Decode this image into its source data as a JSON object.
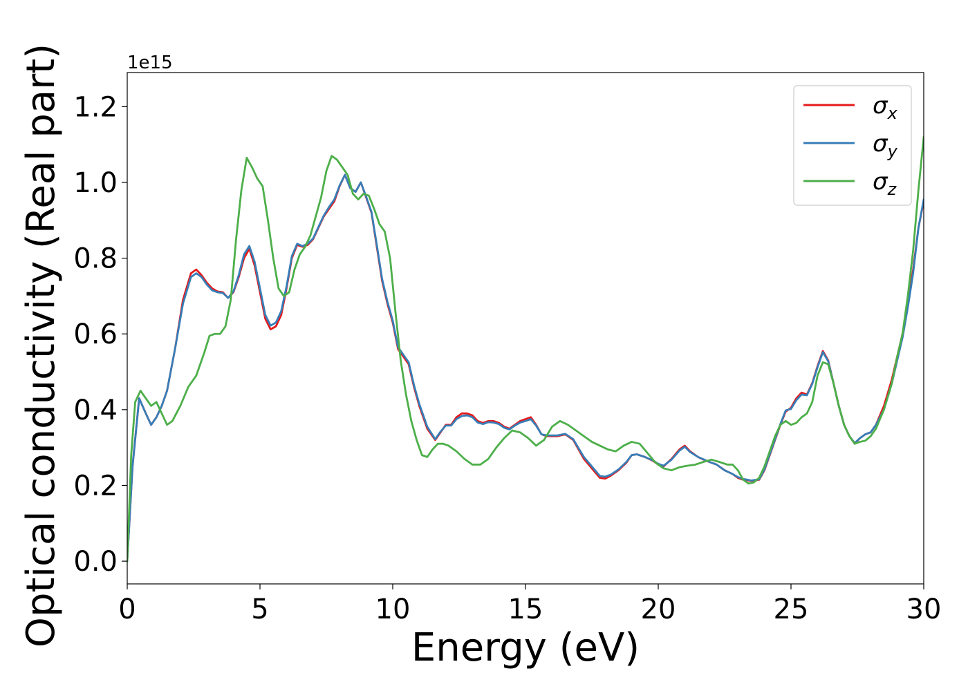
{
  "chart_data": {
    "type": "line",
    "title": "",
    "xlabel": "Energy (eV)",
    "ylabel": "Optical conductivity (Real part)",
    "y_offset_label": "1e15",
    "xlim": [
      0,
      30
    ],
    "ylim": [
      -0.06,
      1.29
    ],
    "xticks": [
      0,
      5,
      10,
      15,
      20,
      25,
      30
    ],
    "xtick_labels": [
      "0",
      "5",
      "10",
      "15",
      "20",
      "25",
      "30"
    ],
    "yticks": [
      0.0,
      0.2,
      0.4,
      0.6,
      0.8,
      1.0,
      1.2
    ],
    "ytick_labels": [
      "0.0",
      "0.2",
      "0.4",
      "0.6",
      "0.8",
      "1.0",
      "1.2"
    ],
    "grid": false,
    "legend_position": "top-right",
    "series": [
      {
        "name": "σx",
        "legend_symbol": "σ",
        "legend_subscript": "x",
        "color": "#e41a1c",
        "x": [
          0,
          0.2,
          0.45,
          0.7,
          0.9,
          1.1,
          1.3,
          1.5,
          1.8,
          2.1,
          2.4,
          2.6,
          2.8,
          3.0,
          3.2,
          3.4,
          3.6,
          3.8,
          4.0,
          4.2,
          4.4,
          4.6,
          4.8,
          5.0,
          5.2,
          5.4,
          5.6,
          5.8,
          6.0,
          6.2,
          6.4,
          6.6,
          6.8,
          7.0,
          7.2,
          7.4,
          7.6,
          7.8,
          8.0,
          8.2,
          8.4,
          8.6,
          8.8,
          9.0,
          9.2,
          9.4,
          9.6,
          9.8,
          10.0,
          10.2,
          10.4,
          10.6,
          10.8,
          11.0,
          11.3,
          11.6,
          11.8,
          12.0,
          12.2,
          12.4,
          12.6,
          12.8,
          13.0,
          13.2,
          13.4,
          13.6,
          13.8,
          14.0,
          14.2,
          14.4,
          14.6,
          14.8,
          15.0,
          15.2,
          15.4,
          15.6,
          15.8,
          16.0,
          16.2,
          16.5,
          16.8,
          17.0,
          17.2,
          17.5,
          17.8,
          18.0,
          18.2,
          18.5,
          18.8,
          19.0,
          19.2,
          19.5,
          19.8,
          20.0,
          20.2,
          20.5,
          20.8,
          21.0,
          21.2,
          21.5,
          21.8,
          22.0,
          22.2,
          22.5,
          22.8,
          23.0,
          23.2,
          23.5,
          23.8,
          24.0,
          24.2,
          24.4,
          24.6,
          24.8,
          25.0,
          25.2,
          25.4,
          25.6,
          25.8,
          26.0,
          26.2,
          26.4,
          26.6,
          26.8,
          27.0,
          27.2,
          27.4,
          27.6,
          27.8,
          28.0,
          28.2,
          28.5,
          28.8,
          29.0,
          29.2,
          29.4,
          29.6,
          29.8,
          30.0
        ],
        "y": [
          0.0,
          0.25,
          0.43,
          0.39,
          0.36,
          0.38,
          0.41,
          0.45,
          0.56,
          0.69,
          0.76,
          0.77,
          0.755,
          0.735,
          0.72,
          0.712,
          0.71,
          0.695,
          0.71,
          0.75,
          0.8,
          0.825,
          0.78,
          0.71,
          0.64,
          0.612,
          0.62,
          0.65,
          0.72,
          0.8,
          0.835,
          0.83,
          0.835,
          0.85,
          0.88,
          0.91,
          0.93,
          0.95,
          0.99,
          1.02,
          0.985,
          0.975,
          1.0,
          0.96,
          0.92,
          0.83,
          0.74,
          0.68,
          0.63,
          0.56,
          0.54,
          0.52,
          0.46,
          0.41,
          0.35,
          0.32,
          0.34,
          0.36,
          0.36,
          0.38,
          0.39,
          0.39,
          0.385,
          0.37,
          0.365,
          0.37,
          0.37,
          0.365,
          0.355,
          0.35,
          0.36,
          0.37,
          0.375,
          0.38,
          0.36,
          0.335,
          0.33,
          0.33,
          0.33,
          0.335,
          0.32,
          0.295,
          0.27,
          0.245,
          0.22,
          0.218,
          0.225,
          0.24,
          0.26,
          0.28,
          0.282,
          0.275,
          0.265,
          0.255,
          0.25,
          0.27,
          0.295,
          0.305,
          0.29,
          0.275,
          0.265,
          0.26,
          0.255,
          0.24,
          0.23,
          0.22,
          0.215,
          0.212,
          0.215,
          0.24,
          0.28,
          0.32,
          0.36,
          0.395,
          0.405,
          0.43,
          0.445,
          0.44,
          0.47,
          0.515,
          0.555,
          0.53,
          0.47,
          0.41,
          0.36,
          0.33,
          0.31,
          0.325,
          0.335,
          0.34,
          0.36,
          0.41,
          0.48,
          0.54,
          0.6,
          0.68,
          0.77,
          0.88,
          0.95
        ]
      },
      {
        "name": "σy",
        "legend_symbol": "σ",
        "legend_subscript": "y",
        "color": "#377eb8",
        "x": [
          0,
          0.2,
          0.45,
          0.7,
          0.9,
          1.1,
          1.3,
          1.5,
          1.8,
          2.1,
          2.4,
          2.6,
          2.8,
          3.0,
          3.2,
          3.4,
          3.6,
          3.8,
          4.0,
          4.2,
          4.4,
          4.6,
          4.8,
          5.0,
          5.2,
          5.4,
          5.6,
          5.8,
          6.0,
          6.2,
          6.4,
          6.6,
          6.8,
          7.0,
          7.2,
          7.4,
          7.6,
          7.8,
          8.0,
          8.2,
          8.4,
          8.6,
          8.8,
          9.0,
          9.2,
          9.4,
          9.6,
          9.8,
          10.0,
          10.2,
          10.4,
          10.6,
          10.8,
          11.0,
          11.3,
          11.6,
          11.8,
          12.0,
          12.2,
          12.4,
          12.6,
          12.8,
          13.0,
          13.2,
          13.4,
          13.6,
          13.8,
          14.0,
          14.2,
          14.4,
          14.6,
          14.8,
          15.0,
          15.2,
          15.4,
          15.6,
          15.8,
          16.0,
          16.2,
          16.5,
          16.8,
          17.0,
          17.2,
          17.5,
          17.8,
          18.0,
          18.2,
          18.5,
          18.8,
          19.0,
          19.2,
          19.5,
          19.8,
          20.0,
          20.2,
          20.5,
          20.8,
          21.0,
          21.2,
          21.5,
          21.8,
          22.0,
          22.2,
          22.5,
          22.8,
          23.0,
          23.2,
          23.5,
          23.8,
          24.0,
          24.2,
          24.4,
          24.6,
          24.8,
          25.0,
          25.2,
          25.4,
          25.6,
          25.8,
          26.0,
          26.2,
          26.4,
          26.6,
          26.8,
          27.0,
          27.2,
          27.4,
          27.6,
          27.8,
          28.0,
          28.2,
          28.5,
          28.8,
          29.0,
          29.2,
          29.4,
          29.6,
          29.8,
          30.0
        ],
        "y": [
          0.0,
          0.25,
          0.43,
          0.39,
          0.36,
          0.38,
          0.41,
          0.45,
          0.56,
          0.68,
          0.75,
          0.76,
          0.75,
          0.73,
          0.715,
          0.71,
          0.708,
          0.695,
          0.712,
          0.755,
          0.81,
          0.832,
          0.79,
          0.72,
          0.65,
          0.622,
          0.63,
          0.66,
          0.725,
          0.805,
          0.838,
          0.832,
          0.838,
          0.852,
          0.882,
          0.912,
          0.935,
          0.955,
          0.992,
          1.02,
          0.985,
          0.975,
          1.0,
          0.962,
          0.922,
          0.835,
          0.745,
          0.685,
          0.635,
          0.565,
          0.545,
          0.525,
          0.465,
          0.415,
          0.355,
          0.322,
          0.342,
          0.358,
          0.358,
          0.375,
          0.383,
          0.385,
          0.38,
          0.366,
          0.362,
          0.367,
          0.366,
          0.362,
          0.352,
          0.348,
          0.358,
          0.366,
          0.37,
          0.375,
          0.358,
          0.335,
          0.332,
          0.332,
          0.332,
          0.336,
          0.322,
          0.298,
          0.275,
          0.25,
          0.225,
          0.223,
          0.228,
          0.242,
          0.262,
          0.28,
          0.282,
          0.275,
          0.266,
          0.257,
          0.252,
          0.268,
          0.292,
          0.302,
          0.288,
          0.275,
          0.266,
          0.26,
          0.255,
          0.24,
          0.23,
          0.222,
          0.217,
          0.213,
          0.216,
          0.242,
          0.282,
          0.322,
          0.362,
          0.398,
          0.402,
          0.425,
          0.44,
          0.438,
          0.468,
          0.512,
          0.552,
          0.528,
          0.47,
          0.41,
          0.36,
          0.33,
          0.312,
          0.325,
          0.335,
          0.34,
          0.36,
          0.4,
          0.47,
          0.53,
          0.59,
          0.67,
          0.76,
          0.88,
          0.955
        ]
      },
      {
        "name": "σz",
        "legend_symbol": "σ",
        "legend_subscript": "z",
        "color": "#4daf4a",
        "x": [
          0,
          0.15,
          0.3,
          0.5,
          0.7,
          0.9,
          1.1,
          1.3,
          1.5,
          1.7,
          2.0,
          2.3,
          2.6,
          2.9,
          3.1,
          3.3,
          3.5,
          3.7,
          3.9,
          4.1,
          4.3,
          4.5,
          4.7,
          4.9,
          5.1,
          5.3,
          5.5,
          5.7,
          5.9,
          6.1,
          6.3,
          6.5,
          6.7,
          6.9,
          7.1,
          7.3,
          7.5,
          7.7,
          7.9,
          8.1,
          8.3,
          8.5,
          8.7,
          8.9,
          9.1,
          9.3,
          9.5,
          9.7,
          9.9,
          10.1,
          10.3,
          10.5,
          10.7,
          10.9,
          11.1,
          11.3,
          11.5,
          11.7,
          11.9,
          12.1,
          12.4,
          12.7,
          13.0,
          13.3,
          13.6,
          13.9,
          14.2,
          14.5,
          14.8,
          15.1,
          15.4,
          15.7,
          16.0,
          16.3,
          16.6,
          16.9,
          17.2,
          17.5,
          17.8,
          18.1,
          18.4,
          18.7,
          19.0,
          19.3,
          19.6,
          19.9,
          20.2,
          20.5,
          20.8,
          21.1,
          21.4,
          21.7,
          22.0,
          22.3,
          22.6,
          22.8,
          23.0,
          23.2,
          23.4,
          23.6,
          23.8,
          24.0,
          24.2,
          24.4,
          24.6,
          24.8,
          25.0,
          25.2,
          25.4,
          25.6,
          25.8,
          26.0,
          26.2,
          26.4,
          26.6,
          26.8,
          27.0,
          27.2,
          27.4,
          27.6,
          27.8,
          28.0,
          28.2,
          28.5,
          28.8,
          29.0,
          29.2,
          29.4,
          29.6,
          29.8,
          30.0
        ],
        "y": [
          0.0,
          0.28,
          0.42,
          0.45,
          0.43,
          0.41,
          0.42,
          0.39,
          0.36,
          0.37,
          0.41,
          0.46,
          0.49,
          0.55,
          0.595,
          0.6,
          0.6,
          0.62,
          0.69,
          0.85,
          0.98,
          1.065,
          1.04,
          1.01,
          0.99,
          0.9,
          0.8,
          0.72,
          0.7,
          0.71,
          0.77,
          0.81,
          0.83,
          0.86,
          0.91,
          0.96,
          1.03,
          1.07,
          1.06,
          1.04,
          1.02,
          0.97,
          0.955,
          0.97,
          0.965,
          0.93,
          0.89,
          0.87,
          0.8,
          0.66,
          0.53,
          0.44,
          0.37,
          0.32,
          0.28,
          0.275,
          0.295,
          0.31,
          0.31,
          0.305,
          0.29,
          0.27,
          0.255,
          0.255,
          0.27,
          0.3,
          0.325,
          0.345,
          0.34,
          0.325,
          0.305,
          0.32,
          0.355,
          0.37,
          0.36,
          0.345,
          0.33,
          0.315,
          0.305,
          0.295,
          0.29,
          0.305,
          0.315,
          0.31,
          0.285,
          0.26,
          0.245,
          0.24,
          0.248,
          0.252,
          0.255,
          0.262,
          0.268,
          0.262,
          0.255,
          0.255,
          0.24,
          0.215,
          0.205,
          0.208,
          0.22,
          0.25,
          0.29,
          0.33,
          0.36,
          0.37,
          0.36,
          0.365,
          0.38,
          0.39,
          0.42,
          0.49,
          0.525,
          0.52,
          0.47,
          0.41,
          0.36,
          0.33,
          0.31,
          0.315,
          0.318,
          0.33,
          0.35,
          0.4,
          0.47,
          0.54,
          0.6,
          0.7,
          0.82,
          0.98,
          1.12
        ]
      }
    ]
  }
}
